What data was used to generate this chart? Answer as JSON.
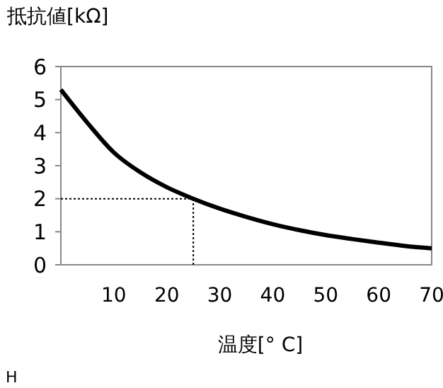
{
  "chart_data": {
    "type": "line",
    "ylabel": "抵抗値[kΩ]",
    "xlabel": "温度[° C]",
    "x": [
      0,
      5,
      10,
      15,
      20,
      25,
      30,
      35,
      40,
      45,
      50,
      55,
      60,
      65,
      70
    ],
    "series": [
      {
        "color": "#000000",
        "values": [
          5.3,
          4.3,
          3.4,
          2.8,
          2.35,
          2.0,
          1.7,
          1.45,
          1.23,
          1.05,
          0.9,
          0.78,
          0.67,
          0.57,
          0.5
        ]
      }
    ],
    "xlim": [
      0,
      70
    ],
    "xticks": [
      10,
      20,
      30,
      40,
      50,
      60,
      70
    ],
    "ylim": [
      0,
      6
    ],
    "yticks": [
      0,
      1,
      2,
      3,
      4,
      5,
      6
    ],
    "ref_lines": [
      {
        "axis": "x",
        "value": 25,
        "line_style": "dotted",
        "color": "#000000"
      },
      {
        "axis": "y",
        "value": 2,
        "line_style": "dotted",
        "color": "#000000"
      }
    ],
    "annotations": [
      "H"
    ],
    "grid": false,
    "marker": "none",
    "line_style": "solid"
  }
}
